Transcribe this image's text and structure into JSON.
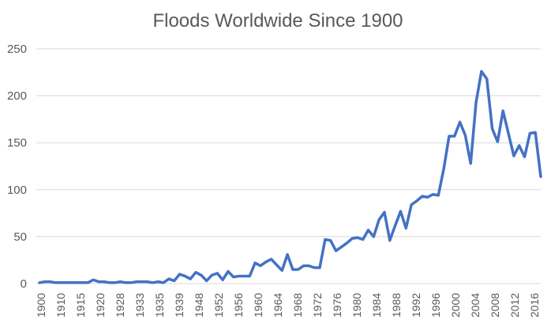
{
  "chart_data": {
    "type": "line",
    "title": "Floods Worldwide Since 1900",
    "xlabel": "",
    "ylabel": "",
    "ylim": [
      0,
      250
    ],
    "y_ticks": [
      "0",
      "50",
      "100",
      "150",
      "200",
      "250"
    ],
    "x_tick_labels": [
      "1900",
      "1910",
      "1915",
      "1920",
      "1928",
      "1933",
      "1935",
      "1939",
      "1948",
      "1952",
      "1956",
      "1960",
      "1964",
      "1968",
      "1972",
      "1976",
      "1980",
      "1984",
      "1988",
      "1992",
      "1996",
      "2000",
      "2004",
      "2008",
      "2012",
      "2016"
    ],
    "grid": true,
    "legend": "none",
    "line_color": "#4472C4",
    "series": [
      {
        "values": [
          1,
          2,
          2,
          1,
          1,
          1,
          1,
          1,
          1,
          1,
          4,
          2,
          2,
          1,
          1,
          2,
          1,
          1,
          2,
          2,
          2,
          1,
          2,
          1,
          5,
          3,
          10,
          8,
          5,
          12,
          9,
          3,
          9,
          11,
          4,
          13,
          7,
          8,
          8,
          8,
          22,
          19,
          23,
          26,
          20,
          14,
          31,
          15,
          15,
          19,
          19,
          17,
          17,
          47,
          46,
          35,
          39,
          43,
          48,
          49,
          47,
          57,
          50,
          68,
          76,
          46,
          62,
          77,
          59,
          84,
          88,
          93,
          92,
          95,
          94,
          122,
          157,
          157,
          172,
          158,
          128,
          193,
          226,
          218,
          165,
          151,
          184,
          160,
          136,
          147,
          135,
          160,
          161,
          114
        ]
      }
    ]
  }
}
